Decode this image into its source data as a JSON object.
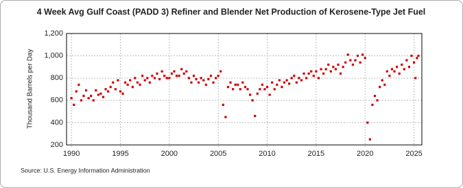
{
  "chart_data": {
    "type": "scatter",
    "title": "4 Week Avg Gulf Coast (PADD 3) Refiner and Blender Net Production of Kerosene-Type Jet Fuel",
    "y_label": "Thousand Barrels per Day",
    "source": "Source: U.S. Energy Information Administration",
    "color": "#cc0000",
    "grid": true,
    "xlim": [
      1989.5,
      2025.8
    ],
    "ylim": [
      200,
      1200
    ],
    "xticks": [
      1990,
      1995,
      2000,
      2005,
      2010,
      2015,
      2020,
      2025
    ],
    "yticks": [
      200,
      400,
      600,
      800,
      {
        "value": 1000,
        "label": "1,000"
      },
      {
        "value": 1200,
        "label": "1,200"
      }
    ],
    "x": [
      1990,
      1990.25,
      1990.5,
      1990.75,
      1991,
      1991.25,
      1991.5,
      1991.75,
      1992,
      1992.25,
      1992.5,
      1992.75,
      1993,
      1993.25,
      1993.5,
      1993.75,
      1994,
      1994.25,
      1994.5,
      1994.75,
      1995,
      1995.25,
      1995.5,
      1995.75,
      1996,
      1996.25,
      1996.5,
      1996.75,
      1997,
      1997.25,
      1997.5,
      1997.75,
      1998,
      1998.25,
      1998.5,
      1998.75,
      1999,
      1999.25,
      1999.5,
      1999.75,
      2000,
      2000.25,
      2000.5,
      2000.75,
      2001,
      2001.25,
      2001.5,
      2001.75,
      2002,
      2002.25,
      2002.5,
      2002.75,
      2003,
      2003.25,
      2003.5,
      2003.75,
      2004,
      2004.25,
      2004.5,
      2004.75,
      2005,
      2005.25,
      2005.5,
      2005.75,
      2006,
      2006.25,
      2006.5,
      2006.75,
      2007,
      2007.25,
      2007.5,
      2007.75,
      2008,
      2008.25,
      2008.5,
      2008.75,
      2009,
      2009.25,
      2009.5,
      2009.75,
      2010,
      2010.25,
      2010.5,
      2010.75,
      2011,
      2011.25,
      2011.5,
      2011.75,
      2012,
      2012.25,
      2012.5,
      2012.75,
      2013,
      2013.25,
      2013.5,
      2013.75,
      2014,
      2014.25,
      2014.5,
      2014.75,
      2015,
      2015.25,
      2015.5,
      2015.75,
      2016,
      2016.25,
      2016.5,
      2016.75,
      2017,
      2017.25,
      2017.5,
      2017.75,
      2018,
      2018.25,
      2018.5,
      2018.75,
      2019,
      2019.25,
      2019.5,
      2019.75,
      2020,
      2020.25,
      2020.5,
      2020.75,
      2021,
      2021.25,
      2021.5,
      2021.75,
      2022,
      2022.25,
      2022.5,
      2022.75,
      2023,
      2023.25,
      2023.5,
      2023.75,
      2024,
      2024.25,
      2024.5,
      2024.75,
      2025,
      2025.15,
      2025.3,
      2025.45
    ],
    "values": [
      620,
      560,
      680,
      740,
      600,
      640,
      690,
      620,
      640,
      600,
      690,
      650,
      660,
      630,
      700,
      680,
      720,
      760,
      700,
      780,
      680,
      660,
      760,
      740,
      780,
      720,
      800,
      760,
      740,
      820,
      780,
      800,
      760,
      820,
      800,
      840,
      790,
      860,
      820,
      800,
      800,
      840,
      860,
      820,
      820,
      880,
      840,
      860,
      800,
      760,
      820,
      790,
      760,
      800,
      780,
      740,
      790,
      820,
      760,
      800,
      820,
      860,
      560,
      450,
      720,
      760,
      700,
      740,
      740,
      700,
      760,
      720,
      700,
      650,
      600,
      460,
      660,
      700,
      740,
      700,
      720,
      650,
      760,
      700,
      740,
      780,
      720,
      760,
      780,
      750,
      800,
      820,
      760,
      800,
      780,
      840,
      800,
      840,
      860,
      820,
      860,
      800,
      880,
      840,
      880,
      920,
      860,
      900,
      880,
      920,
      840,
      900,
      940,
      1010,
      960,
      920,
      960,
      1000,
      940,
      1010,
      980,
      400,
      250,
      560,
      640,
      600,
      720,
      780,
      740,
      860,
      820,
      880,
      860,
      900,
      840,
      920,
      880,
      960,
      900,
      1000,
      940,
      800,
      980,
      1000
    ]
  }
}
